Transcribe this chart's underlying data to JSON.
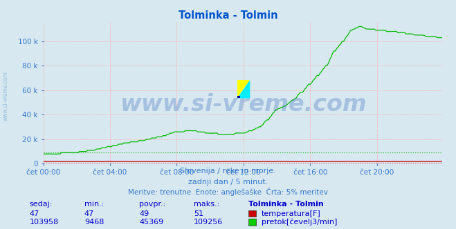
{
  "title": "Tolminka - Tolmin",
  "title_color": "#0055cc",
  "bg_color": "#d8e8f0",
  "plot_bg_color": "#d8e8f0",
  "grid_color": "#ffaaaa",
  "xlabel_color": "#3377cc",
  "ylabel_ticks": [
    0,
    20000,
    40000,
    60000,
    80000,
    100000
  ],
  "ylabel_labels": [
    "0",
    "20 k",
    "40 k",
    "60 k",
    "80 k",
    "100 k"
  ],
  "ylim": [
    0,
    115000
  ],
  "xlim_max": 287,
  "xtick_positions": [
    0,
    48,
    96,
    144,
    192,
    240
  ],
  "xtick_labels": [
    "čet 00:00",
    "čet 04:00",
    "čet 08:00",
    "čet 12:00",
    "čet 16:00",
    "čet 20:00"
  ],
  "temp_color": "#cc0000",
  "flow_color": "#00bb00",
  "flow_dot_color": "#00bb00",
  "temp_dot_color": "#cc0000",
  "watermark_text": "www.si-vreme.com",
  "watermark_color": "#3366bb",
  "watermark_alpha": 0.3,
  "watermark_fontsize": 24,
  "sidebar_text": "www.si-vreme.com",
  "sidebar_color": "#5599cc",
  "sidebar_alpha": 0.55,
  "footer_line1": "Slovenija / reke in morje.",
  "footer_line2": "zadnji dan / 5 minut.",
  "footer_line3": "Meritve: trenutne  Enote: anglešaške  Črta: 5% meritev",
  "footer_color": "#3377cc",
  "footer_fontsize": 8,
  "table_headers": [
    "sedaj:",
    "min.:",
    "povpr.:",
    "maks.:",
    "Tolminka - Tolmin"
  ],
  "table_temp": [
    "47",
    "47",
    "49",
    "51"
  ],
  "table_flow": [
    "103958",
    "9468",
    "45369",
    "109256"
  ],
  "table_color": "#0000cc",
  "table_fontsize": 8,
  "logo_yellow": "#ffff00",
  "logo_cyan": "#00eeff",
  "logo_darkblue": "#0000aa",
  "arrow_color": "#cc0000",
  "temp_ref_y": 800,
  "flow_ref_y": 9468,
  "n_points": 288
}
